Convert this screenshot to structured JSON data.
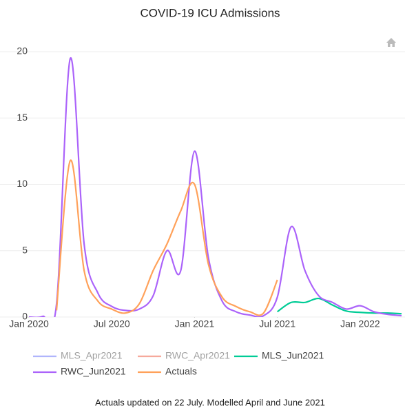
{
  "chart_data": {
    "type": "line",
    "title": "COVID-19 ICU Admissions",
    "footnote": "Actuals updated on 22 July. Modelled April and June 2021",
    "x": [
      "2020-01",
      "2020-02",
      "2020-03",
      "2020-04",
      "2020-05",
      "2020-06",
      "2020-07",
      "2020-08",
      "2020-09",
      "2020-10",
      "2020-11",
      "2020-12",
      "2021-01",
      "2021-02",
      "2021-03",
      "2021-04",
      "2021-05",
      "2021-06",
      "2021-07",
      "2021-08",
      "2021-09",
      "2021-10",
      "2021-11",
      "2021-12",
      "2022-01",
      "2022-02",
      "2022-03",
      "2022-04"
    ],
    "series": [
      {
        "name": "MLS_Apr2021",
        "color": "#636efa",
        "visible": "legendonly"
      },
      {
        "name": "RWC_Apr2021",
        "color": "#ef553b",
        "visible": "legendonly"
      },
      {
        "name": "MLS_Jun2021",
        "color": "#00cc96",
        "values": [
          null,
          null,
          null,
          null,
          null,
          null,
          null,
          null,
          null,
          null,
          null,
          null,
          null,
          null,
          null,
          null,
          null,
          null,
          0.4,
          1.1,
          1.1,
          1.4,
          0.9,
          0.45,
          0.35,
          0.3,
          0.3,
          0.25
        ]
      },
      {
        "name": "RWC_Jun2021",
        "color": "#ab63fa",
        "values": [
          0,
          0.05,
          1.0,
          19.5,
          5.5,
          1.8,
          0.8,
          0.5,
          0.6,
          1.6,
          5.0,
          3.5,
          12.5,
          4.5,
          1.2,
          0.4,
          0.15,
          0.1,
          1.5,
          6.8,
          3.5,
          1.6,
          1.1,
          0.6,
          0.85,
          0.4,
          0.2,
          0.1
        ]
      },
      {
        "name": "Actuals",
        "color": "#ffa15a",
        "values": [
          null,
          null,
          0.5,
          11.8,
          3.5,
          1.2,
          0.6,
          0.3,
          1.0,
          3.5,
          5.5,
          8,
          10,
          4,
          1.5,
          0.8,
          0.4,
          0.3,
          2.8,
          null,
          null,
          null,
          null,
          null,
          null,
          null,
          null,
          null
        ]
      }
    ],
    "xlim": [
      "2020-01",
      "2022-04"
    ],
    "xticks": [
      {
        "value": "2020-01",
        "label": "Jan 2020"
      },
      {
        "value": "2020-07",
        "label": "Jul 2020"
      },
      {
        "value": "2021-01",
        "label": "Jan 2021"
      },
      {
        "value": "2021-07",
        "label": "Jul 2021"
      },
      {
        "value": "2022-01",
        "label": "Jan 2022"
      }
    ],
    "ylim": [
      0,
      20
    ],
    "yticks": [
      0,
      5,
      10,
      15,
      20
    ],
    "grid": true
  }
}
